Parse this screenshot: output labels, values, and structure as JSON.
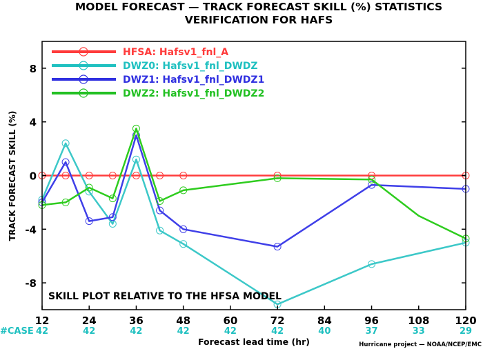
{
  "chart_data": {
    "type": "line",
    "title": "MODEL FORECAST — TRACK FORECAST SKILL (%) STATISTICS",
    "subtitle": "VERIFICATION FOR HAFS",
    "xlabel": "Forecast lead time (hr)",
    "ylabel": "TRACK FORECAST SKILL (%)",
    "xlim": [
      12,
      120
    ],
    "ylim": [
      -10,
      10
    ],
    "x_ticks": [
      12,
      24,
      36,
      48,
      60,
      72,
      84,
      96,
      108,
      120
    ],
    "y_ticks": [
      -8,
      -4,
      0,
      4,
      8
    ],
    "grid": false,
    "legend_position": "top-left",
    "annotation": "SKILL PLOT RELATIVE TO THE HFSA MODEL",
    "case_label": "#CASE",
    "case_counts": [
      "42",
      "42",
      "42",
      "42",
      "42",
      "42",
      "40",
      "37",
      "33",
      "29"
    ],
    "footer": "Hurricane project — NOAA/NCEP/EMC",
    "series": [
      {
        "name": "HFSA: Hafsv1_fnl_A",
        "color": "#ff3b3b",
        "legend_color": "#ff3b3b",
        "x": [
          12,
          18,
          24,
          30,
          36,
          42,
          48,
          72,
          96,
          120
        ],
        "y": [
          0,
          0,
          0,
          0,
          0,
          0,
          0,
          0,
          0,
          0
        ],
        "markers_x": [
          12,
          18,
          24,
          30,
          36,
          42,
          48,
          72,
          96,
          120
        ]
      },
      {
        "name": "DWZ0: Hafsv1_fnl_DWDZ",
        "color": "#3cc8c8",
        "legend_color": "#1fc0c0",
        "x": [
          12,
          18,
          24,
          30,
          36,
          42,
          48,
          72,
          96,
          120
        ],
        "y": [
          -1.8,
          2.4,
          -1.2,
          -3.6,
          1.2,
          -4.1,
          -5.1,
          -9.6,
          -6.6,
          -5.0
        ],
        "markers_x": [
          12,
          18,
          24,
          30,
          36,
          42,
          48,
          72,
          96,
          120
        ]
      },
      {
        "name": "DWZ1: Hafsv1_fnl_DWDZ1",
        "color": "#3f3fe8",
        "legend_color": "#3030e0",
        "x": [
          12,
          18,
          24,
          30,
          36,
          42,
          48,
          72,
          96,
          120
        ],
        "y": [
          -2.0,
          1.0,
          -3.4,
          -3.1,
          3.0,
          -2.6,
          -4.0,
          -5.3,
          -0.7,
          -1.0
        ],
        "markers_x": [
          12,
          18,
          24,
          30,
          36,
          42,
          48,
          72,
          96,
          120
        ]
      },
      {
        "name": "DWZ2: Hafsv1_fnl_DWDZ2",
        "color": "#2ecc1e",
        "legend_color": "#22c022",
        "x": [
          12,
          18,
          24,
          30,
          36,
          42,
          48,
          72,
          96,
          108,
          120
        ],
        "y": [
          -2.2,
          -2.0,
          -0.9,
          -1.7,
          3.5,
          -1.9,
          -1.1,
          -0.2,
          -0.3,
          -3.0,
          -4.7
        ],
        "markers_x": [
          12,
          18,
          24,
          30,
          36,
          42,
          48,
          72,
          96,
          120
        ]
      }
    ]
  }
}
